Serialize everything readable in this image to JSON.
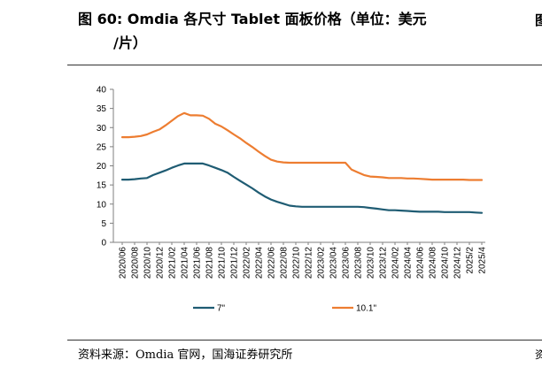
{
  "header": {
    "title": "图 60：Omdia 各尺寸 Tablet 面板价格（单位：美元/片）",
    "title_line1": "图 60:  Omdia 各尺寸 Tablet 面板价格（单位：美元",
    "title_line2": "/片）",
    "edge_glyph_top": "图"
  },
  "footer": {
    "source": "资料来源：Omdia 官网，国海证券研究所",
    "edge_glyph_bottom": "资"
  },
  "chart_data": {
    "type": "line",
    "title": "",
    "xlabel": "",
    "ylabel": "",
    "ylim": [
      0,
      40
    ],
    "yticks": [
      0,
      5,
      10,
      15,
      20,
      25,
      30,
      35,
      40
    ],
    "grid": false,
    "legend_position": "bottom",
    "x": [
      "2020/06",
      "2020/07",
      "2020/08",
      "2020/09",
      "2020/10",
      "2020/11",
      "2020/12",
      "2021/01",
      "2021/02",
      "2021/03",
      "2021/04",
      "2021/05",
      "2021/06",
      "2021/07",
      "2021/08",
      "2021/09",
      "2021/10",
      "2021/11",
      "2021/12",
      "2022/01",
      "2022/02",
      "2022/03",
      "2022/04",
      "2022/05",
      "2022/06",
      "2022/07",
      "2022/08",
      "2022/09",
      "2022/10",
      "2022/11",
      "2022/12",
      "2023/01",
      "2023/02",
      "2023/03",
      "2023/04",
      "2023/05",
      "2023/06",
      "2023/07",
      "2023/08",
      "2023/09",
      "2023/10",
      "2023/11",
      "2023/12",
      "2024/01",
      "2024/02",
      "2024/03",
      "2024/04",
      "2024/05",
      "2024/06",
      "2024/07",
      "2024/08",
      "2024/09",
      "2024/10",
      "2024/11",
      "2024/12",
      "2025/1",
      "2025/2",
      "2025/3",
      "2025/4"
    ],
    "x_tick_labels": [
      "2020/06",
      "2020/08",
      "2020/10",
      "2020/12",
      "2021/02",
      "2021/04",
      "2021/06",
      "2021/08",
      "2021/10",
      "2021/12",
      "2022/02",
      "2022/04",
      "2022/06",
      "2022/08",
      "2022/10",
      "2022/12",
      "2023/02",
      "2023/04",
      "2023/06",
      "2023/08",
      "2023/10",
      "2023/12",
      "2024/02",
      "2024/04",
      "2024/06",
      "2024/08",
      "2024/10",
      "2024/12",
      "2025/2",
      "2025/4"
    ],
    "series": [
      {
        "name": "7\"",
        "color": "#1f5c73",
        "values": [
          16.4,
          16.4,
          16.5,
          16.7,
          16.8,
          17.6,
          18.2,
          18.8,
          19.5,
          20.1,
          20.6,
          20.6,
          20.6,
          20.6,
          20.1,
          19.5,
          18.9,
          18.2,
          17.1,
          16.1,
          15.1,
          14.1,
          13.0,
          12.0,
          11.2,
          10.6,
          10.1,
          9.6,
          9.4,
          9.3,
          9.3,
          9.3,
          9.3,
          9.3,
          9.3,
          9.3,
          9.3,
          9.3,
          9.3,
          9.2,
          9.0,
          8.8,
          8.6,
          8.4,
          8.4,
          8.3,
          8.2,
          8.1,
          8.0,
          8.0,
          8.0,
          8.0,
          7.9,
          7.9,
          7.9,
          7.9,
          7.9,
          7.8,
          7.7
        ]
      },
      {
        "name": "10.1\"",
        "color": "#ed7d31",
        "values": [
          27.5,
          27.5,
          27.6,
          27.8,
          28.2,
          28.9,
          29.5,
          30.6,
          31.8,
          33.0,
          33.8,
          33.2,
          33.2,
          33.1,
          32.3,
          31.0,
          30.3,
          29.3,
          28.2,
          27.2,
          26.0,
          24.9,
          23.7,
          22.6,
          21.6,
          21.1,
          20.9,
          20.8,
          20.8,
          20.8,
          20.8,
          20.8,
          20.8,
          20.8,
          20.8,
          20.8,
          20.8,
          19.0,
          18.3,
          17.6,
          17.2,
          17.1,
          17.0,
          16.8,
          16.8,
          16.8,
          16.7,
          16.7,
          16.6,
          16.5,
          16.4,
          16.4,
          16.4,
          16.4,
          16.4,
          16.4,
          16.3,
          16.3,
          16.3
        ]
      }
    ]
  }
}
